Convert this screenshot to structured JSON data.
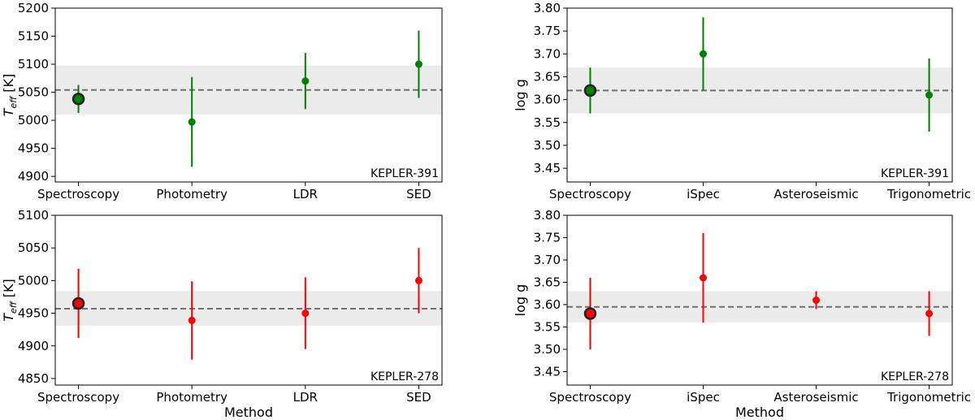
{
  "chart_data": [
    {
      "type": "scatter",
      "panel": "top-left",
      "star": "KEPLER-391",
      "ylabel_symbol": "T",
      "ylabel_sub": "eff",
      "ylabel_unit": " [K]",
      "xlabel": "",
      "categories": [
        "Spectroscopy",
        "Photometry",
        "LDR",
        "SED"
      ],
      "ylim": [
        4890,
        5200
      ],
      "yticks": [
        4900,
        4950,
        5000,
        5050,
        5100,
        5150,
        5200
      ],
      "decimals": 0,
      "color": "#008000",
      "mean": 5054,
      "band": [
        5010,
        5098
      ],
      "points": [
        {
          "value": 5038,
          "err": 25,
          "highlight": true
        },
        {
          "value": 4997,
          "err": 80
        },
        {
          "value": 5070,
          "err": 50
        },
        {
          "value": 5100,
          "err": 60
        }
      ],
      "grid": false
    },
    {
      "type": "scatter",
      "panel": "top-right",
      "star": "KEPLER-391",
      "ylabel_symbol": "log g",
      "ylabel_sub": "",
      "ylabel_unit": "",
      "xlabel": "",
      "categories": [
        "Spectroscopy",
        "iSpec",
        "Asteroseismic",
        "Trigonometric"
      ],
      "ylim": [
        3.42,
        3.8
      ],
      "yticks": [
        3.45,
        3.5,
        3.55,
        3.6,
        3.65,
        3.7,
        3.75,
        3.8
      ],
      "decimals": 2,
      "color": "#008000",
      "mean": 3.62,
      "band": [
        3.57,
        3.67
      ],
      "points": [
        {
          "value": 3.62,
          "err": 0.05,
          "highlight": true
        },
        {
          "value": 3.7,
          "err": 0.08
        },
        null,
        {
          "value": 3.61,
          "err": 0.08
        }
      ],
      "grid": false
    },
    {
      "type": "scatter",
      "panel": "bottom-left",
      "star": "KEPLER-278",
      "ylabel_symbol": "T",
      "ylabel_sub": "eff",
      "ylabel_unit": " [K]",
      "xlabel": "Method",
      "categories": [
        "Spectroscopy",
        "Photometry",
        "LDR",
        "SED"
      ],
      "ylim": [
        4840,
        5100
      ],
      "yticks": [
        4850,
        4900,
        4950,
        5000,
        5050,
        5100
      ],
      "decimals": 0,
      "color": "#ff0000",
      "mean": 4957,
      "band": [
        4931,
        4984
      ],
      "points": [
        {
          "value": 4965,
          "err": 53,
          "highlight": true
        },
        {
          "value": 4939,
          "err": 60
        },
        {
          "value": 4950,
          "err": 55
        },
        {
          "value": 5000,
          "err": 50
        }
      ],
      "grid": false
    },
    {
      "type": "scatter",
      "panel": "bottom-right",
      "star": "KEPLER-278",
      "ylabel_symbol": "log g",
      "ylabel_sub": "",
      "ylabel_unit": "",
      "xlabel": "Method",
      "categories": [
        "Spectroscopy",
        "iSpec",
        "Asteroseismic",
        "Trigonometric"
      ],
      "ylim": [
        3.42,
        3.8
      ],
      "yticks": [
        3.45,
        3.5,
        3.55,
        3.6,
        3.65,
        3.7,
        3.75,
        3.8
      ],
      "decimals": 2,
      "color": "#ff0000",
      "mean": 3.595,
      "band": [
        3.56,
        3.63
      ],
      "points": [
        {
          "value": 3.58,
          "err": 0.08,
          "highlight": true
        },
        {
          "value": 3.66,
          "err": 0.1
        },
        {
          "value": 3.61,
          "err": 0.02
        },
        {
          "value": 3.58,
          "err": 0.05
        }
      ],
      "grid": false
    }
  ],
  "colors": {
    "band": "#ebebeb",
    "mean_line": "#707070",
    "highlight_edge": "#222222"
  }
}
